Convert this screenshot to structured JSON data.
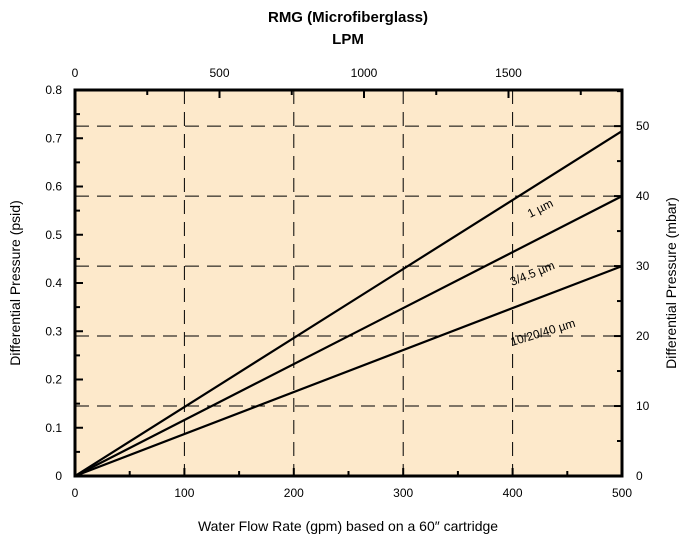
{
  "chart_data": {
    "type": "line",
    "title": "RMG (Microfiberglass)",
    "subtitle": "LPM",
    "xlabel": "Water Flow Rate (gpm) based on a 60″ cartridge",
    "ylabel": "Differential Pressure (psid)",
    "y2label": "Differential Pressure (mbar)",
    "xlim": [
      0,
      500
    ],
    "ylim": [
      0,
      0.8
    ],
    "x2lim": [
      0,
      1892.7
    ],
    "y2lim": [
      0,
      55.16
    ],
    "xticks": [
      "0",
      "100",
      "200",
      "300",
      "400",
      "500"
    ],
    "yticks": [
      "0",
      "0.1",
      "0.2",
      "0.3",
      "0.4",
      "0.5",
      "0.6",
      "0.7",
      "0.8"
    ],
    "x2ticks": [
      "0",
      "500",
      "1000",
      "1500"
    ],
    "y2ticks": [
      "0",
      "10",
      "20",
      "30",
      "40",
      "50"
    ],
    "grid": true,
    "background": "#fde9cb",
    "series": [
      {
        "name": "1 µm",
        "x": [
          0,
          500
        ],
        "values": [
          0,
          0.715
        ]
      },
      {
        "name": "3/4.5 µm",
        "x": [
          0,
          500
        ],
        "values": [
          0,
          0.58
        ]
      },
      {
        "name": "10/20/40 µm",
        "x": [
          0,
          500
        ],
        "values": [
          0,
          0.435
        ]
      }
    ]
  }
}
